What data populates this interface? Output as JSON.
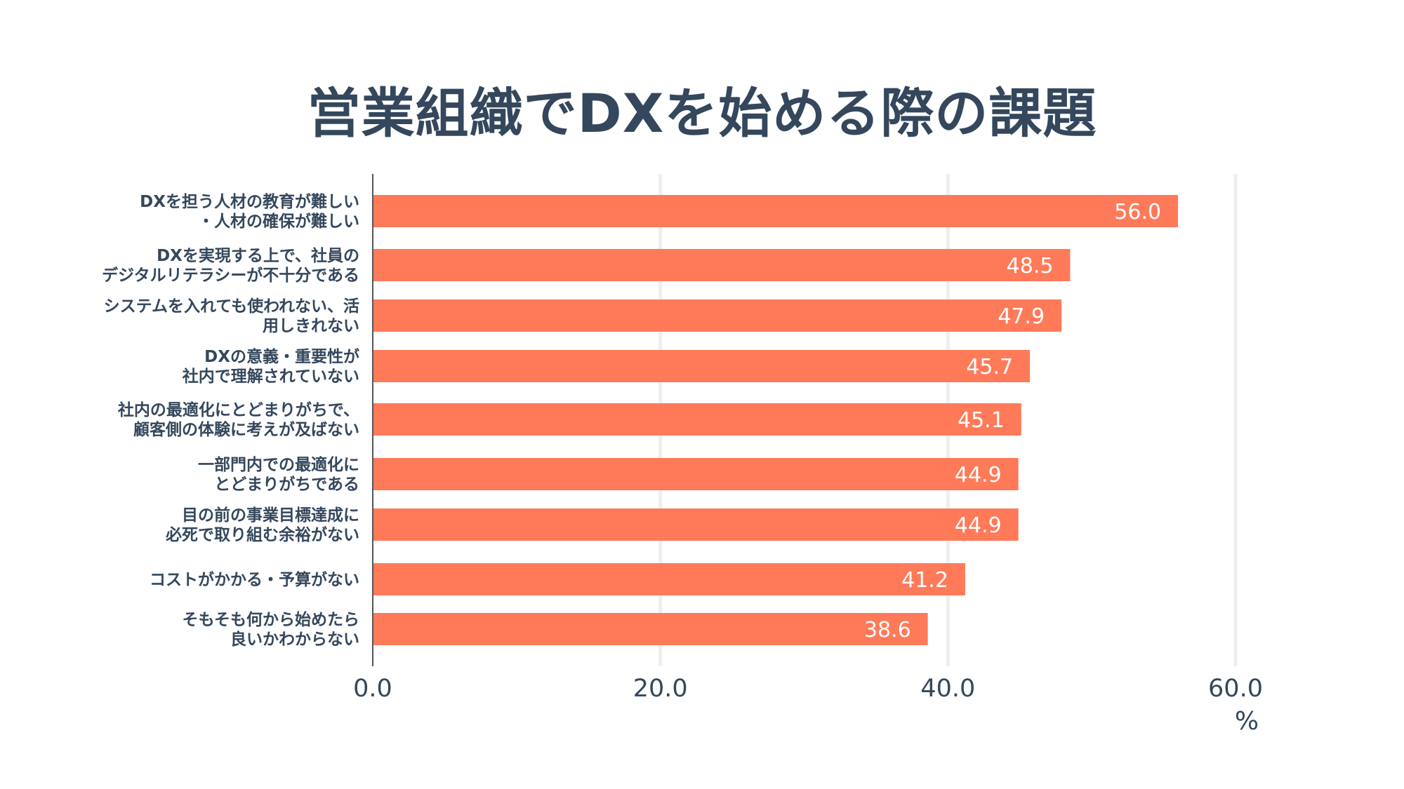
{
  "chart_data": {
    "type": "bar",
    "orientation": "horizontal",
    "title": "営業組織でDXを始める際の課題",
    "categories": [
      [
        "DXを担う人材の教育が難しい",
        "・人材の確保が難しい"
      ],
      [
        "DXを実現する上で、社員の",
        "デジタルリテラシーが不十分である"
      ],
      [
        "システムを入れても使われない、活",
        "用しきれない"
      ],
      [
        "DXの意義・重要性が",
        "社内で理解されていない"
      ],
      [
        "社内の最適化にとどまりがちで、",
        "顧客側の体験に考えが及ばない"
      ],
      [
        "一部門内での最適化に",
        "とどまりがちである"
      ],
      [
        "目の前の事業目標達成に",
        "必死で取り組む余裕がない"
      ],
      [
        "コストがかかる・予算がない"
      ],
      [
        "そもそも何から始めたら",
        "良いかわからない"
      ]
    ],
    "values": [
      56.0,
      48.5,
      47.9,
      45.7,
      45.1,
      44.9,
      44.9,
      41.2,
      38.6
    ],
    "value_labels": [
      "56.0",
      "48.5",
      "47.9",
      "45.7",
      "45.1",
      "44.9",
      "44.9",
      "41.2",
      "38.6"
    ],
    "xticks": [
      "0.0",
      "20.0",
      "40.0",
      "60.0"
    ],
    "xtick_values": [
      0,
      20,
      40,
      60
    ],
    "xlim": [
      0,
      60
    ],
    "xlabel": "%",
    "ylabel": "",
    "grid": true,
    "bar_color": "#ff7a59",
    "grid_color": "#eeeeee",
    "axis_color": "#555555",
    "text_color": "#34475c"
  }
}
